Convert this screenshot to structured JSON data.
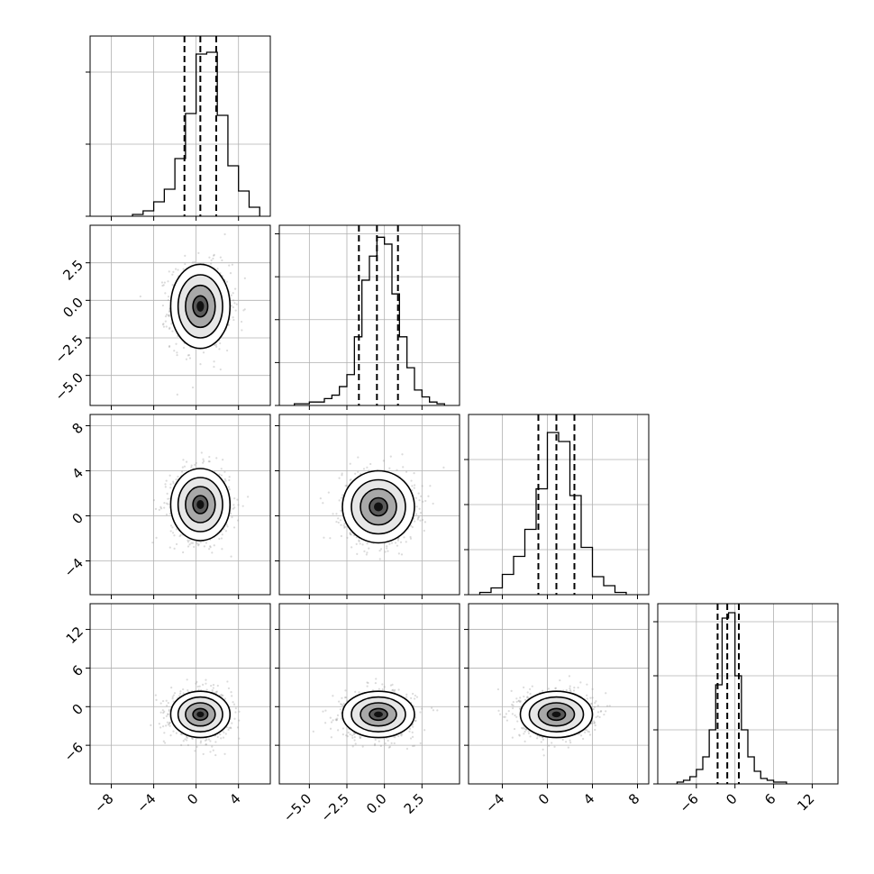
{
  "chart_data": {
    "type": "corner",
    "title": "",
    "parameters": [
      {
        "index": 0,
        "range": [
          -10,
          7
        ],
        "ticks": [
          -8,
          -4,
          0,
          4
        ],
        "tick_labels": [
          "−8",
          "−4",
          "0",
          "4"
        ],
        "histogram": {
          "bin_edges": [
            -6,
            -5,
            -4,
            -3,
            -2,
            -1,
            0,
            1,
            2,
            3,
            4,
            5,
            6
          ],
          "heights": [
            1,
            3,
            8,
            15,
            32,
            57,
            90,
            91,
            56,
            28,
            14,
            5
          ],
          "y_max": 100,
          "y_ticks": [
            0,
            40,
            80
          ]
        },
        "quantiles": [
          -1.1,
          0.4,
          1.9
        ]
      },
      {
        "index": 1,
        "range": [
          -7,
          5
        ],
        "ticks": [
          -5.0,
          -2.5,
          0.0,
          2.5
        ],
        "tick_labels": [
          "−5.0",
          "−2.5",
          "0.0",
          "2.5"
        ],
        "histogram": {
          "bin_edges": [
            -6,
            -5.5,
            -5,
            -4.5,
            -4,
            -3.5,
            -3,
            -2.5,
            -2,
            -1.5,
            -1,
            -0.5,
            0,
            0.5,
            1,
            1.5,
            2,
            2.5,
            3,
            3.5,
            4
          ],
          "heights": [
            1,
            1,
            2,
            2,
            4,
            6,
            11,
            18,
            40,
            73,
            87,
            98,
            94,
            65,
            40,
            22,
            9,
            5,
            2,
            1
          ],
          "y_max": 105,
          "y_ticks": [
            0,
            25,
            50,
            75,
            100
          ]
        },
        "quantiles": [
          -1.7,
          -0.5,
          0.9
        ]
      },
      {
        "index": 2,
        "range": [
          -7,
          9
        ],
        "ticks": [
          -4,
          0,
          4,
          8
        ],
        "tick_labels": [
          "−4",
          "0",
          "4",
          "8"
        ],
        "histogram": {
          "bin_edges": [
            -6,
            -5,
            -4,
            -3,
            -2,
            -1,
            0,
            1,
            2,
            3,
            4,
            5,
            6,
            7
          ],
          "heights": [
            1,
            3,
            9,
            17,
            29,
            47,
            72,
            68,
            44,
            21,
            8,
            4,
            1
          ],
          "y_max": 80,
          "y_ticks": [
            0,
            20,
            40,
            60
          ]
        },
        "quantiles": [
          -0.8,
          0.8,
          2.4
        ]
      },
      {
        "index": 3,
        "range": [
          -12,
          16
        ],
        "ticks": [
          -6,
          0,
          6,
          12
        ],
        "tick_labels": [
          "−6",
          "0",
          "6",
          "12"
        ],
        "histogram": {
          "bin_edges": [
            -9,
            -8,
            -7,
            -6,
            -5,
            -4,
            -3,
            -2,
            -1,
            0,
            1,
            2,
            3,
            4,
            5,
            6,
            7,
            8
          ],
          "heights": [
            1,
            2,
            4,
            8,
            15,
            30,
            55,
            92,
            95,
            60,
            30,
            15,
            7,
            3,
            2,
            1,
            1
          ],
          "y_max": 100,
          "y_ticks": [
            0,
            30,
            60,
            90
          ]
        },
        "quantiles": [
          -2.7,
          -1.2,
          0.6
        ]
      }
    ],
    "pairs": [
      {
        "row": 1,
        "col": 0,
        "center": [
          0.4,
          -0.4
        ],
        "sigma": [
          1.4,
          1.4
        ],
        "rho": 0,
        "scatter_color": "#999999",
        "contour_levels": [
          0.5,
          1.0,
          1.5,
          2.0
        ]
      },
      {
        "row": 2,
        "col": 0,
        "center": [
          0.4,
          1.0
        ],
        "sigma": [
          1.4,
          1.6
        ],
        "rho": 0,
        "scatter_color": "#999999",
        "contour_levels": [
          0.5,
          1.0,
          1.5,
          2.0
        ]
      },
      {
        "row": 2,
        "col": 1,
        "center": [
          -0.4,
          0.8
        ],
        "sigma": [
          1.2,
          1.6
        ],
        "rho": 0,
        "scatter_color": "#999999",
        "contour_levels": [
          0.5,
          1.0,
          1.5,
          2.0
        ]
      },
      {
        "row": 3,
        "col": 0,
        "center": [
          0.4,
          -1.2
        ],
        "sigma": [
          1.4,
          1.8
        ],
        "rho": 0,
        "scatter_color": "#999999",
        "contour_levels": [
          0.5,
          1.0,
          1.5,
          2.0
        ]
      },
      {
        "row": 3,
        "col": 1,
        "center": [
          -0.4,
          -1.2
        ],
        "sigma": [
          1.2,
          1.8
        ],
        "rho": 0,
        "scatter_color": "#999999",
        "contour_levels": [
          0.5,
          1.0,
          1.5,
          2.0
        ]
      },
      {
        "row": 3,
        "col": 2,
        "center": [
          0.8,
          -1.2
        ],
        "sigma": [
          1.6,
          1.8
        ],
        "rho": 0,
        "scatter_color": "#999999",
        "contour_levels": [
          0.5,
          1.0,
          1.5,
          2.0
        ]
      }
    ],
    "grid": true,
    "line_color": "#000000",
    "grid_color": "#b0b0b0"
  }
}
